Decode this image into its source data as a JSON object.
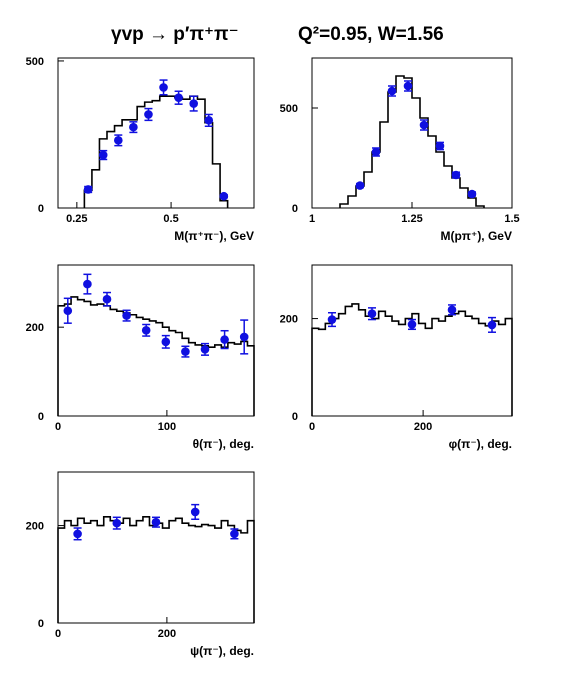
{
  "title": {
    "reaction": "γvp → p′π⁺π⁻",
    "kinematics": "Q²=0.95, W=1.56"
  },
  "colors": {
    "points": "#1010e0",
    "errorbars": "#1010e0",
    "histogram": "#000000",
    "axes": "#000000"
  },
  "chart_data": [
    {
      "id": "m-pipi",
      "type": "histogram+errorbar",
      "xlabel": "M(π⁺π⁻), GeV",
      "xlim": [
        0.2,
        0.72
      ],
      "ylim": [
        0,
        510
      ],
      "xticks": [
        {
          "v": 0.25,
          "label": "0.25"
        },
        {
          "v": 0.5,
          "label": "0.5"
        }
      ],
      "yticks": [
        {
          "v": 0,
          "label": "0"
        },
        {
          "v": 500,
          "label": "500"
        }
      ],
      "histogram": {
        "edges": [
          0.27,
          0.29,
          0.31,
          0.33,
          0.35,
          0.37,
          0.39,
          0.41,
          0.43,
          0.45,
          0.47,
          0.49,
          0.51,
          0.53,
          0.55,
          0.57,
          0.59,
          0.61,
          0.63,
          0.65
        ],
        "values": [
          60,
          130,
          235,
          260,
          280,
          300,
          300,
          345,
          360,
          365,
          380,
          380,
          375,
          370,
          380,
          370,
          290,
          150,
          25
        ]
      },
      "points": [
        {
          "x": 0.28,
          "y": 63,
          "err": 10
        },
        {
          "x": 0.32,
          "y": 180,
          "err": 15
        },
        {
          "x": 0.36,
          "y": 230,
          "err": 18
        },
        {
          "x": 0.4,
          "y": 275,
          "err": 18
        },
        {
          "x": 0.44,
          "y": 318,
          "err": 20
        },
        {
          "x": 0.48,
          "y": 410,
          "err": 25
        },
        {
          "x": 0.52,
          "y": 375,
          "err": 22
        },
        {
          "x": 0.56,
          "y": 355,
          "err": 25
        },
        {
          "x": 0.6,
          "y": 298,
          "err": 20
        },
        {
          "x": 0.64,
          "y": 40,
          "err": 5
        }
      ]
    },
    {
      "id": "m-ppip",
      "type": "histogram+errorbar",
      "xlabel": "M(pπ⁺), GeV",
      "xlim": [
        1.0,
        1.5
      ],
      "ylim": [
        0,
        750
      ],
      "xticks": [
        {
          "v": 1.0,
          "label": "1"
        },
        {
          "v": 1.25,
          "label": "1.25"
        },
        {
          "v": 1.5,
          "label": "1.5"
        }
      ],
      "yticks": [
        {
          "v": 0,
          "label": "0"
        },
        {
          "v": 500,
          "label": "500"
        }
      ],
      "histogram": {
        "edges": [
          1.07,
          1.09,
          1.11,
          1.13,
          1.15,
          1.17,
          1.19,
          1.21,
          1.23,
          1.25,
          1.27,
          1.29,
          1.31,
          1.33,
          1.35,
          1.37,
          1.39,
          1.41,
          1.43
        ],
        "values": [
          20,
          60,
          110,
          180,
          280,
          430,
          580,
          660,
          650,
          550,
          450,
          360,
          280,
          210,
          150,
          100,
          50,
          10
        ]
      },
      "points": [
        {
          "x": 1.12,
          "y": 112,
          "err": 10
        },
        {
          "x": 1.16,
          "y": 280,
          "err": 20
        },
        {
          "x": 1.2,
          "y": 585,
          "err": 25
        },
        {
          "x": 1.24,
          "y": 610,
          "err": 25
        },
        {
          "x": 1.28,
          "y": 415,
          "err": 25
        },
        {
          "x": 1.32,
          "y": 310,
          "err": 18
        },
        {
          "x": 1.36,
          "y": 165,
          "err": 14
        },
        {
          "x": 1.4,
          "y": 70,
          "err": 10
        }
      ]
    },
    {
      "id": "theta",
      "type": "histogram+errorbar",
      "xlabel": "θ(π⁻), deg.",
      "xlim": [
        0,
        180
      ],
      "ylim": [
        0,
        340
      ],
      "xticks": [
        {
          "v": 0,
          "label": "0"
        },
        {
          "v": 100,
          "label": "100"
        }
      ],
      "yticks": [
        {
          "v": 0,
          "label": "0"
        },
        {
          "v": 200,
          "label": "200"
        }
      ],
      "histogram": {
        "edges": [
          0,
          6,
          12,
          18,
          24,
          30,
          36,
          42,
          48,
          54,
          60,
          66,
          72,
          78,
          84,
          90,
          96,
          102,
          108,
          114,
          120,
          126,
          132,
          138,
          144,
          150,
          156,
          162,
          168,
          174,
          180
        ],
        "values": [
          248,
          252,
          268,
          262,
          258,
          250,
          252,
          248,
          240,
          236,
          232,
          228,
          222,
          218,
          214,
          210,
          200,
          192,
          188,
          175,
          165,
          160,
          158,
          155,
          160,
          155,
          165,
          162,
          168,
          158
        ]
      },
      "points": [
        {
          "x": 9,
          "y": 237,
          "err": 28
        },
        {
          "x": 27,
          "y": 297,
          "err": 22
        },
        {
          "x": 45,
          "y": 263,
          "err": 15
        },
        {
          "x": 63,
          "y": 226,
          "err": 12
        },
        {
          "x": 81,
          "y": 193,
          "err": 13
        },
        {
          "x": 99,
          "y": 167,
          "err": 14
        },
        {
          "x": 117,
          "y": 145,
          "err": 12
        },
        {
          "x": 135,
          "y": 150,
          "err": 13
        },
        {
          "x": 153,
          "y": 172,
          "err": 20
        },
        {
          "x": 171,
          "y": 178,
          "err": 38
        }
      ]
    },
    {
      "id": "phi",
      "type": "histogram+errorbar",
      "xlabel": "φ(π⁻), deg.",
      "xlim": [
        0,
        360
      ],
      "ylim": [
        0,
        310
      ],
      "xticks": [
        {
          "v": 0,
          "label": "0"
        },
        {
          "v": 200,
          "label": "200"
        }
      ],
      "yticks": [
        {
          "v": 0,
          "label": "0"
        },
        {
          "v": 200,
          "label": "200"
        }
      ],
      "histogram": {
        "edges": [
          0,
          12,
          24,
          36,
          48,
          60,
          72,
          84,
          96,
          108,
          120,
          132,
          144,
          156,
          168,
          180,
          192,
          204,
          216,
          228,
          240,
          252,
          264,
          276,
          288,
          300,
          312,
          324,
          336,
          348,
          360
        ],
        "values": [
          180,
          178,
          190,
          200,
          210,
          225,
          230,
          218,
          205,
          200,
          215,
          205,
          195,
          188,
          200,
          210,
          190,
          180,
          200,
          195,
          205,
          210,
          215,
          205,
          200,
          190,
          185,
          195,
          188,
          200
        ]
      },
      "points": [
        {
          "x": 36,
          "y": 198,
          "err": 14
        },
        {
          "x": 108,
          "y": 210,
          "err": 12
        },
        {
          "x": 180,
          "y": 188,
          "err": 10
        },
        {
          "x": 252,
          "y": 218,
          "err": 10
        },
        {
          "x": 324,
          "y": 187,
          "err": 15
        }
      ]
    },
    {
      "id": "psi",
      "type": "histogram+errorbar",
      "xlabel": "ψ(π⁻), deg.",
      "xlim": [
        0,
        360
      ],
      "ylim": [
        0,
        310
      ],
      "xticks": [
        {
          "v": 0,
          "label": "0"
        },
        {
          "v": 200,
          "label": "200"
        }
      ],
      "yticks": [
        {
          "v": 0,
          "label": "0"
        },
        {
          "v": 200,
          "label": "200"
        }
      ],
      "histogram": {
        "edges": [
          0,
          12,
          24,
          36,
          48,
          60,
          72,
          84,
          96,
          108,
          120,
          132,
          144,
          156,
          168,
          180,
          192,
          204,
          216,
          228,
          240,
          252,
          264,
          276,
          288,
          300,
          312,
          324,
          336,
          348,
          360
        ],
        "values": [
          195,
          210,
          200,
          215,
          205,
          210,
          200,
          218,
          210,
          205,
          215,
          200,
          210,
          218,
          200,
          205,
          195,
          210,
          215,
          205,
          200,
          198,
          202,
          200,
          195,
          210,
          200,
          190,
          185,
          210
        ]
      },
      "points": [
        {
          "x": 36,
          "y": 183,
          "err": 12
        },
        {
          "x": 108,
          "y": 205,
          "err": 12
        },
        {
          "x": 180,
          "y": 207,
          "err": 10
        },
        {
          "x": 252,
          "y": 228,
          "err": 15
        },
        {
          "x": 324,
          "y": 183,
          "err": 10
        }
      ]
    }
  ]
}
